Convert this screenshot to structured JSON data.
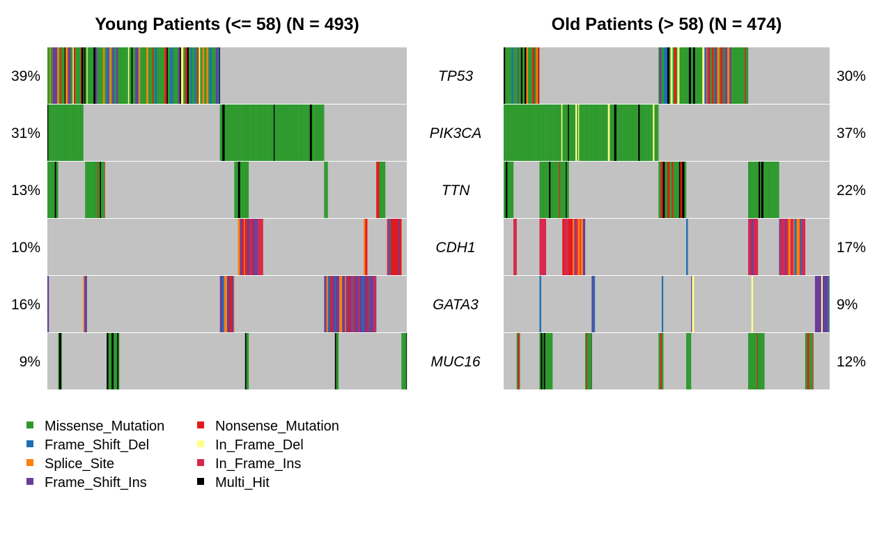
{
  "chart_data": {
    "type": "heatmap",
    "title": "",
    "genes": [
      "TP53",
      "PIK3CA",
      "TTN",
      "CDH1",
      "GATA3",
      "MUC16"
    ],
    "panels": [
      {
        "title": "Young Patients (<= 58) (N = 493)",
        "n": 493,
        "percents": [
          "39%",
          "31%",
          "13%",
          "10%",
          "16%",
          "9%"
        ]
      },
      {
        "title": "Old Patients (> 58) (N = 474)",
        "n": 474,
        "percents": [
          "30%",
          "37%",
          "22%",
          "17%",
          "9%",
          "12%"
        ]
      }
    ],
    "background_color": "#c2c2c2",
    "legend": [
      {
        "label": "Missense_Mutation",
        "color": "#2e9a2e"
      },
      {
        "label": "Frame_Shift_Del",
        "color": "#1f6fb4"
      },
      {
        "label": "Splice_Site",
        "color": "#ff7f0e"
      },
      {
        "label": "Frame_Shift_Ins",
        "color": "#6a3d9a"
      },
      {
        "label": "Nonsense_Mutation",
        "color": "#e31a1c"
      },
      {
        "label": "In_Frame_Del",
        "color": "#ffff88"
      },
      {
        "label": "In_Frame_Ins",
        "color": "#d6284b"
      },
      {
        "label": "Multi_Hit",
        "color": "#000000"
      }
    ]
  }
}
